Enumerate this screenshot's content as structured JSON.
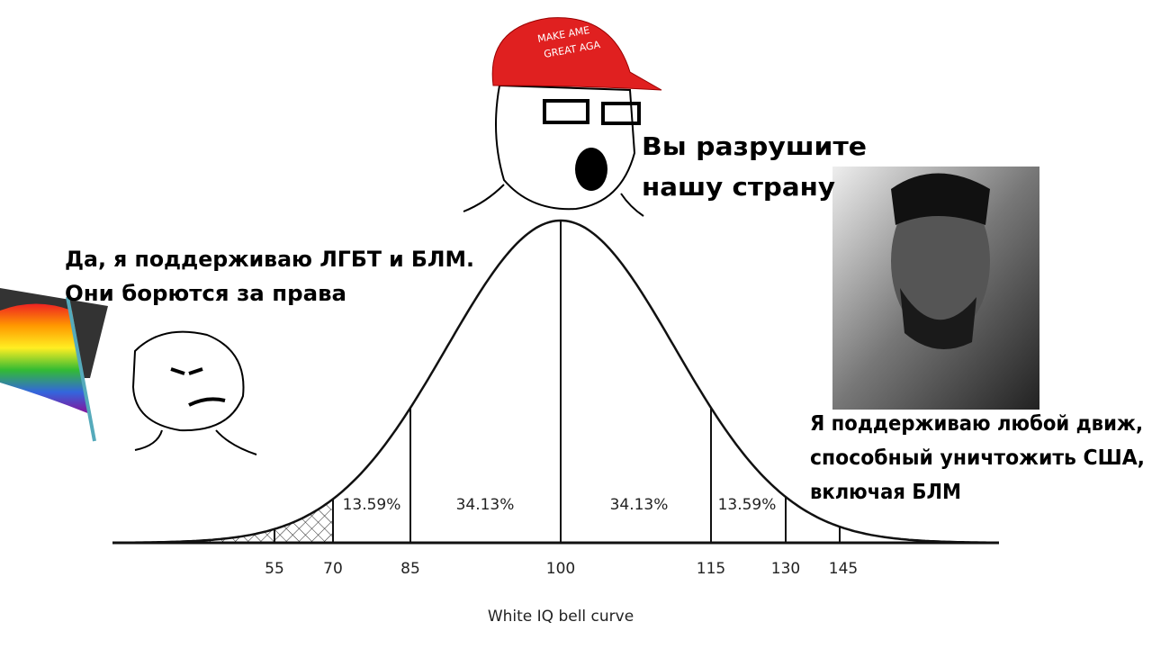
{
  "captions": {
    "top": [
      "Вы разрушите",
      "нашу страну"
    ],
    "left": [
      "Да, я поддерживаю ЛГБТ и БЛМ.",
      "Они борются за права"
    ],
    "right": [
      "Я поддерживаю любой движ,",
      "способный уничтожить США,",
      "включая БЛМ"
    ],
    "hat": [
      "MAKE AME",
      "GREAT AGA"
    ]
  },
  "curve": {
    "title": "White IQ bell curve",
    "tick_labels": [
      "55",
      "70",
      "85",
      "100",
      "115",
      "130",
      "145"
    ],
    "region_labels": [
      "13.59%",
      "34.13%",
      "34.13%",
      "13.59%"
    ]
  }
}
